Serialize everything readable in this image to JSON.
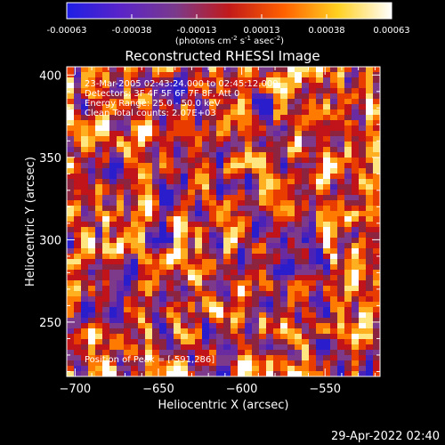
{
  "colorbar": {
    "ticks": [
      "-0.00063",
      "-0.00038",
      "-0.00013",
      "0.00013",
      "0.00038",
      "0.00063"
    ],
    "units_main": "(photons cm",
    "units_exp1": "-2",
    "units_mid": " s",
    "units_exp2": "-1",
    "units_mid2": " asec",
    "units_exp3": "-2",
    "units_end": ")",
    "colormap": [
      "#1e1ee6",
      "#5a24c8",
      "#7a3a8c",
      "#c21a1a",
      "#ff6000",
      "#ffd020",
      "#ffffff"
    ]
  },
  "annotations": {
    "time_range": "23-Mar-2005 02:43:24.000 to 02:45:12.000",
    "detectors": "Detectors: 3F 4F 5F 6F 7F 8F, Att 0",
    "energy": "Energy Range: 25.0 - 50.0 keV",
    "clean": "Clean       Total counts: 2.07E+03",
    "peak": "Position of Peak = [-591,286]"
  },
  "footer_timestamp": "29-Apr-2022 02:40",
  "chart_data": {
    "type": "heatmap",
    "title": "Reconstructed RHESSI Image",
    "xlabel": "Heliocentric X (arcsec)",
    "ylabel": "Heliocentric Y (arcsec)",
    "xlim": [
      -705,
      -517
    ],
    "ylim": [
      217,
      405
    ],
    "xticks": [
      -700,
      -650,
      -600,
      -550
    ],
    "yticks": [
      250,
      300,
      350,
      400
    ],
    "value_range": [
      -0.00063,
      0.00063
    ],
    "peak_position": [
      -591,
      286
    ],
    "grid": false
  }
}
